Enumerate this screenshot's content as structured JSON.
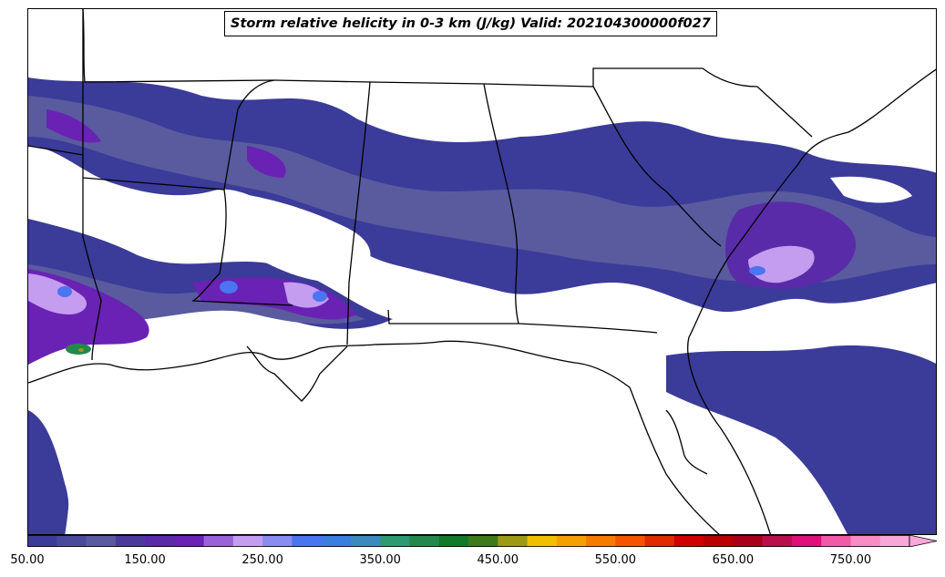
{
  "title": "Storm relative helicity in 0-3 km (J/kg) Valid: 202104300000f027",
  "colorbar": {
    "min": 50,
    "max": 800,
    "step": 25,
    "extend": "max",
    "tick_labels": [
      "50.00",
      "150.00",
      "250.00",
      "350.00",
      "450.00",
      "550.00",
      "650.00",
      "750.00"
    ],
    "colors": [
      "#3b3b9a",
      "#4a4a9c",
      "#5a5a9e",
      "#4b3a9c",
      "#5a2ba8",
      "#6a22b4",
      "#9a62d8",
      "#c49cf0",
      "#8b8cf0",
      "#4a74f0",
      "#3a7ee0",
      "#3a8ac0",
      "#2e9a72",
      "#24884e",
      "#117a2a",
      "#3e7a18",
      "#9c9a14",
      "#f0c000",
      "#f4a000",
      "#f47a00",
      "#f45400",
      "#e02a00",
      "#d00000",
      "#b80000",
      "#a8001a",
      "#b8104a",
      "#e0107a",
      "#f05aa8",
      "#f88cc4",
      "#f8a8d8"
    ]
  }
}
